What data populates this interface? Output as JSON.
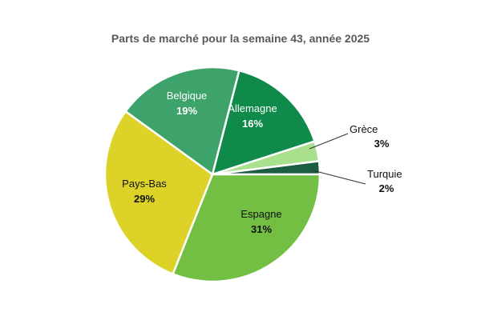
{
  "chart_data": {
    "type": "pie",
    "title": "Parts de marché pour la semaine 43, année 2025",
    "slices": [
      {
        "label": "Turquie",
        "value_text": "2%",
        "value": 2,
        "color": "#1b5e44",
        "label_color": "#111111"
      },
      {
        "label": "Grèce",
        "value_text": "3%",
        "value": 3,
        "color": "#a8e08e",
        "label_color": "#111111"
      },
      {
        "label": "Allemagne",
        "value_text": "16%",
        "value": 16,
        "color": "#0f8a4a",
        "label_color": "#ffffff"
      },
      {
        "label": "Belgique",
        "value_text": "19%",
        "value": 19,
        "color": "#3ea36a",
        "label_color": "#ffffff"
      },
      {
        "label": "Pays-Bas",
        "value_text": "29%",
        "value": 29,
        "color": "#dcd228",
        "label_color": "#111111"
      },
      {
        "label": "Espagne",
        "value_text": "31%",
        "value": 31,
        "color": "#72bf44",
        "label_color": "#111111"
      }
    ]
  }
}
